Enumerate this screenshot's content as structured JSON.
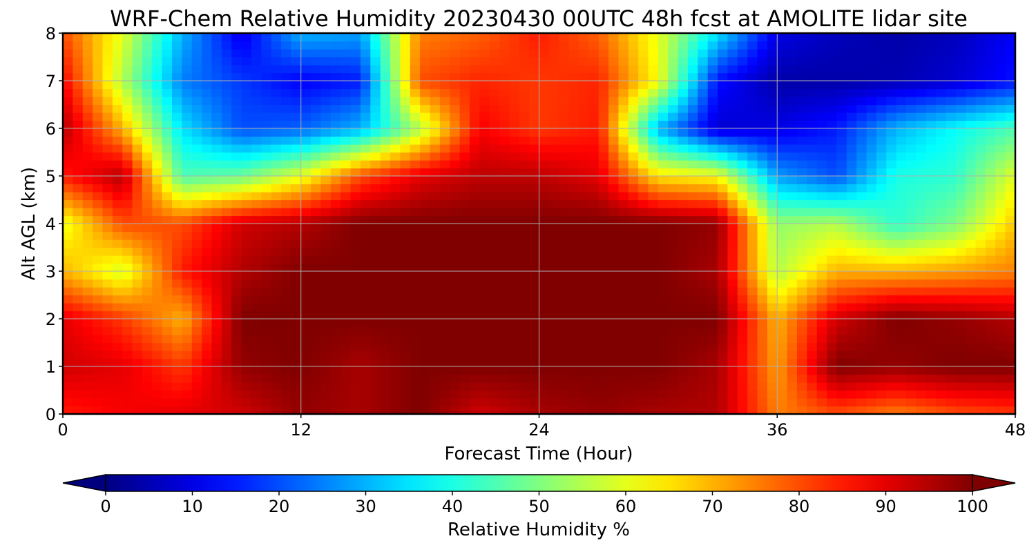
{
  "chart_data": {
    "type": "heatmap",
    "title": "WRF-Chem Relative Humidity 20230430 00UTC 48h fcst at AMOLITE lidar site",
    "xlabel": "Forecast Time (Hour)",
    "ylabel": "Alt AGL (km)",
    "xlim": [
      0,
      48
    ],
    "ylim": [
      0,
      8
    ],
    "x_ticks": [
      "0",
      "12",
      "24",
      "36",
      "48"
    ],
    "y_ticks": [
      "0",
      "1",
      "2",
      "3",
      "4",
      "5",
      "6",
      "7",
      "8"
    ],
    "grid": true,
    "colormap": "jet",
    "colorbar": {
      "label": "Relative Humidity %",
      "ticks": [
        "0",
        "10",
        "20",
        "30",
        "40",
        "50",
        "60",
        "70",
        "80",
        "90",
        "100"
      ],
      "range": [
        0,
        100
      ],
      "extend": "both",
      "orientation": "horizontal",
      "placement": "bottom"
    },
    "x": [
      0,
      3,
      6,
      9,
      12,
      15,
      18,
      21,
      24,
      27,
      30,
      33,
      36,
      39,
      42,
      45,
      48
    ],
    "y": [
      0,
      1,
      2,
      3,
      4,
      5,
      6,
      7,
      8
    ],
    "z": [
      [
        85,
        88,
        90,
        92,
        98,
        96,
        100,
        92,
        96,
        98,
        96,
        95,
        75,
        80,
        75,
        80,
        82
      ],
      [
        92,
        90,
        82,
        98,
        100,
        96,
        100,
        100,
        100,
        100,
        100,
        96,
        72,
        100,
        98,
        100,
        100
      ],
      [
        90,
        82,
        70,
        100,
        100,
        100,
        100,
        100,
        100,
        100,
        100,
        100,
        70,
        92,
        100,
        98,
        95
      ],
      [
        70,
        58,
        85,
        95,
        100,
        100,
        100,
        100,
        100,
        100,
        100,
        96,
        55,
        70,
        70,
        72,
        75
      ],
      [
        60,
        80,
        80,
        92,
        95,
        100,
        100,
        100,
        100,
        100,
        100,
        98,
        52,
        55,
        42,
        50,
        68
      ],
      [
        85,
        95,
        45,
        48,
        60,
        80,
        90,
        94,
        94,
        90,
        65,
        62,
        28,
        20,
        40,
        42,
        60
      ],
      [
        95,
        70,
        35,
        20,
        22,
        30,
        55,
        88,
        82,
        85,
        30,
        8,
        10,
        15,
        30,
        38,
        45
      ],
      [
        88,
        55,
        25,
        18,
        12,
        15,
        80,
        84,
        82,
        84,
        62,
        14,
        4,
        4,
        5,
        8,
        14
      ],
      [
        80,
        60,
        30,
        10,
        30,
        28,
        75,
        78,
        85,
        78,
        60,
        35,
        10,
        6,
        4,
        6,
        12
      ]
    ]
  }
}
